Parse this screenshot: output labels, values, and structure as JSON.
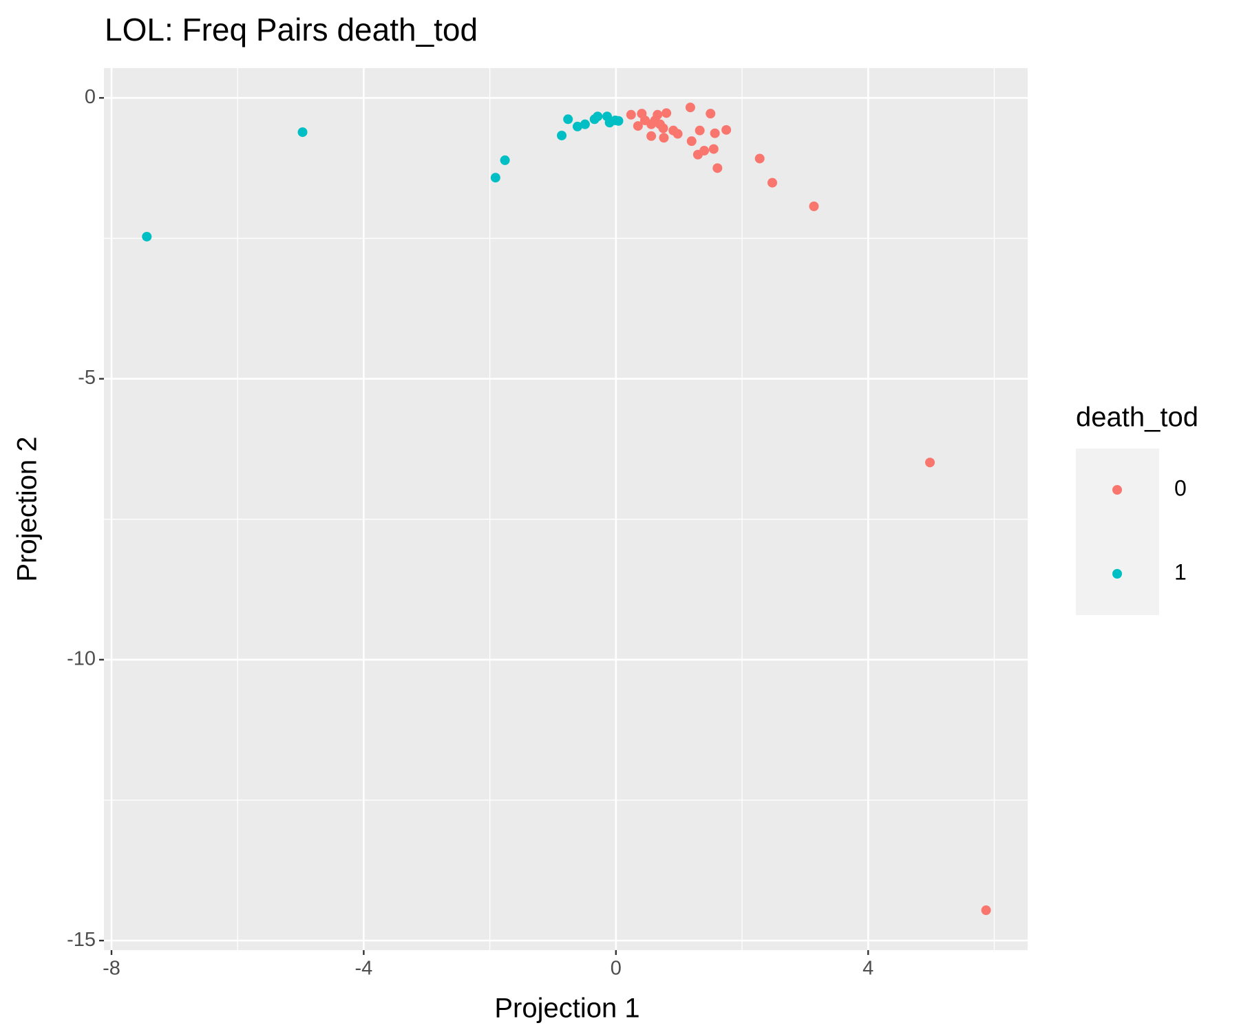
{
  "chart_data": {
    "type": "scatter",
    "title": "LOL: Freq Pairs death_tod",
    "x_label": "Projection 1",
    "y_label": "Projection 2",
    "legend_title": "death_tod",
    "legend": "right",
    "grid": true,
    "xlim": [
      -8.12,
      6.53
    ],
    "ylim": [
      -15.17,
      0.53
    ],
    "xticks": [
      -8,
      -4,
      0,
      4
    ],
    "yticks": [
      -15,
      -10,
      -5,
      0
    ],
    "series": [
      {
        "name": "0",
        "color": "#F8766D",
        "x": [
          5.87,
          4.98,
          3.14,
          2.48,
          2.28,
          1.61,
          1.55,
          1.4,
          1.3,
          1.2,
          1.33,
          1.57,
          1.75,
          1.5,
          1.18,
          0.98,
          0.91,
          0.8,
          0.76,
          0.56,
          0.66,
          0.75,
          0.24,
          0.35,
          0.41,
          0.46,
          0.56,
          0.62,
          0.7
        ],
        "values": [
          -14.46,
          -6.49,
          -1.93,
          -1.51,
          -1.08,
          -1.25,
          -0.91,
          -0.94,
          -1.01,
          -0.77,
          -0.58,
          -0.63,
          -0.57,
          -0.28,
          -0.17,
          -0.64,
          -0.58,
          -0.27,
          -0.71,
          -0.68,
          -0.3,
          -0.54,
          -0.3,
          -0.5,
          -0.28,
          -0.4,
          -0.47,
          -0.4,
          -0.47
        ]
      },
      {
        "name": "1",
        "color": "#00BFC4",
        "x": [
          -7.44,
          -4.97,
          -1.91,
          -1.76,
          -0.86,
          -0.76,
          -0.61,
          -0.49,
          -0.34,
          -0.29,
          -0.14,
          -0.1,
          -0.01,
          0.04
        ],
        "values": [
          -2.47,
          -0.61,
          -1.42,
          -1.11,
          -0.67,
          -0.38,
          -0.51,
          -0.47,
          -0.38,
          -0.33,
          -0.33,
          -0.44,
          -0.4,
          -0.41
        ]
      }
    ]
  }
}
